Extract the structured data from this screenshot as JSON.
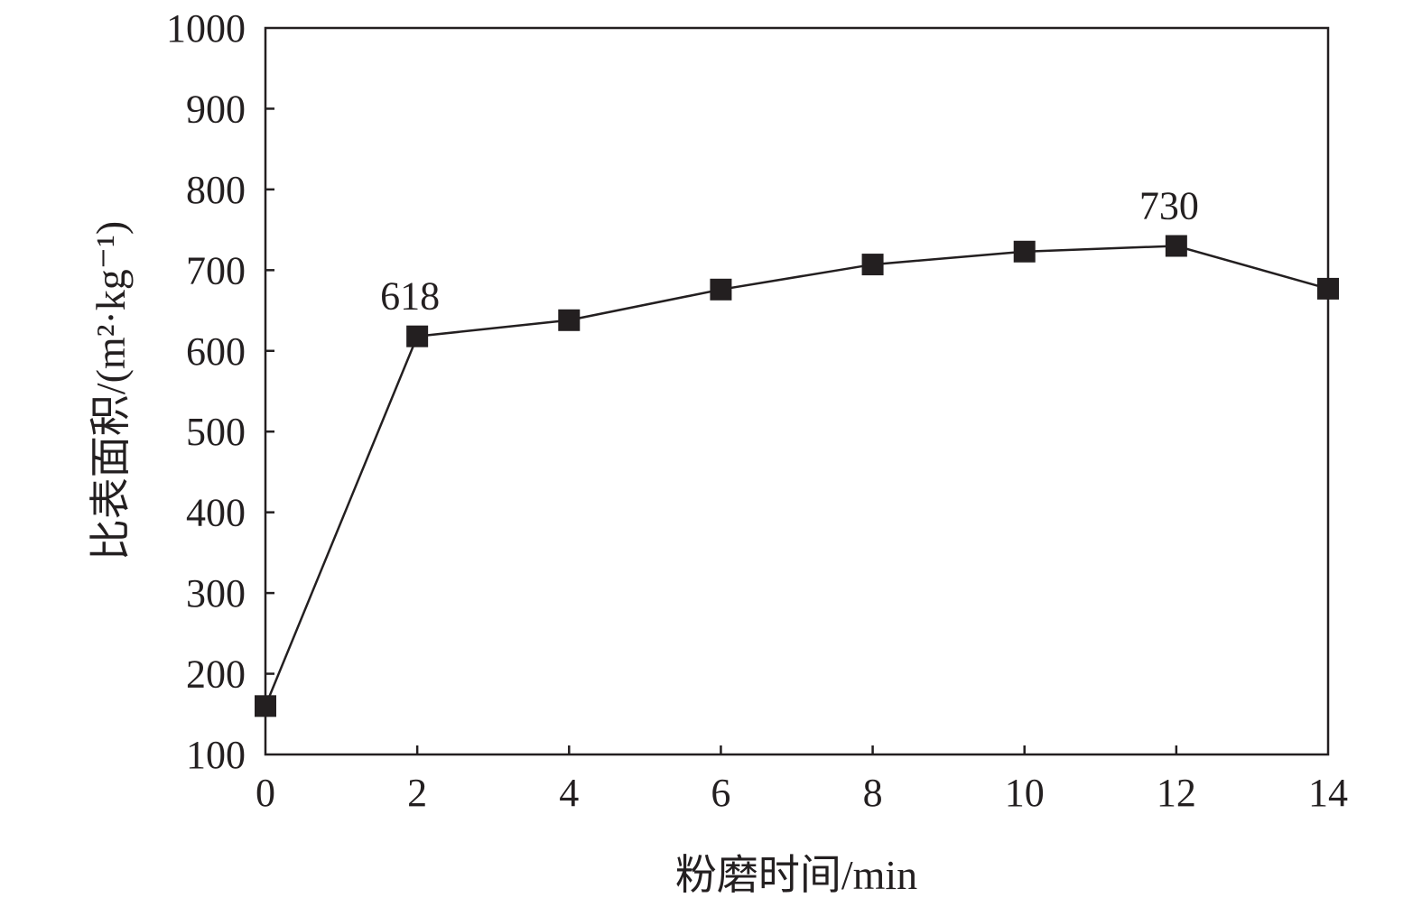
{
  "chart_data": {
    "type": "line",
    "title": "",
    "xlabel": "粉磨时间/min",
    "ylabel": "比表面积/(m²·kg⁻¹)",
    "xlim": [
      0,
      14
    ],
    "ylim": [
      100,
      1000
    ],
    "xticks": [
      0,
      2,
      4,
      6,
      8,
      10,
      12,
      14
    ],
    "yticks": [
      100,
      200,
      300,
      400,
      500,
      600,
      700,
      800,
      900,
      1000
    ],
    "grid": false,
    "legend": "none",
    "series": [
      {
        "x": [
          0,
          2,
          4,
          6,
          8,
          10,
          12,
          14
        ],
        "y": [
          160,
          618,
          638,
          676,
          707,
          723,
          730,
          677
        ],
        "marker": "square",
        "color": "#231f20"
      }
    ],
    "annotations": [
      {
        "text": "618",
        "x": 2,
        "y": 618
      },
      {
        "text": "730",
        "x": 12,
        "y": 730
      }
    ]
  }
}
